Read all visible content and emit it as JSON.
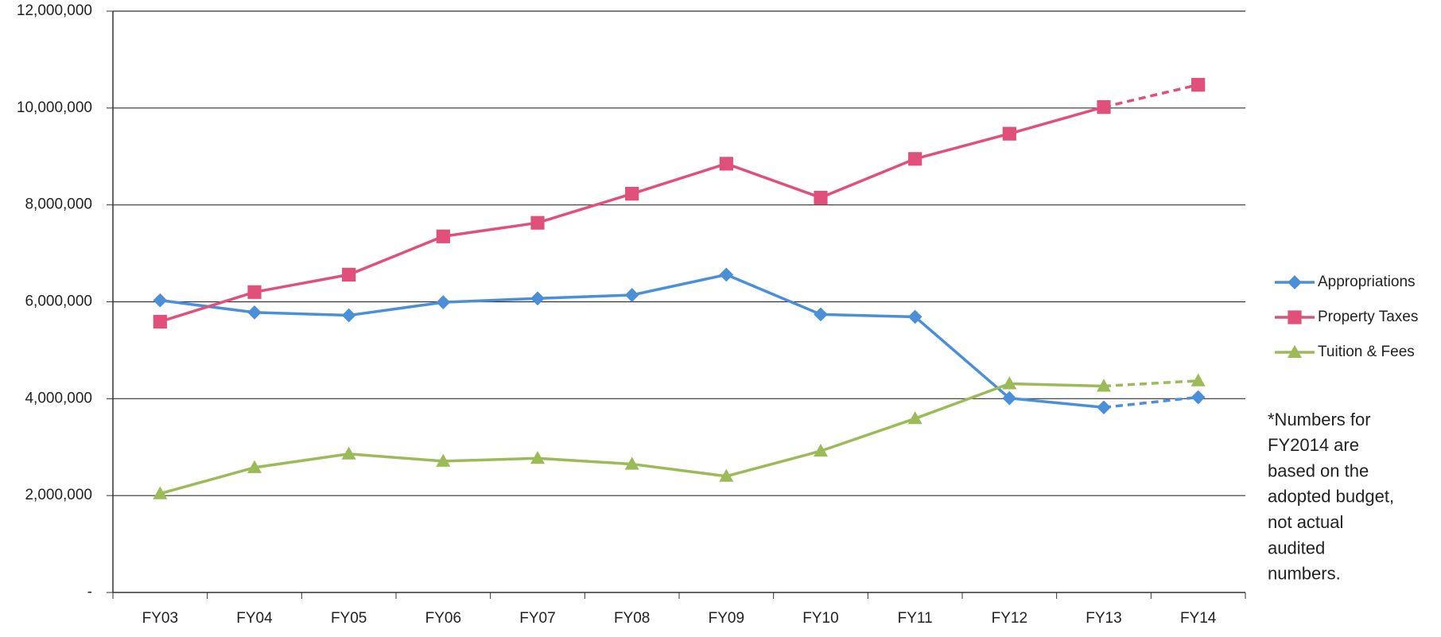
{
  "chart_data": {
    "type": "line",
    "categories": [
      "FY03",
      "FY04",
      "FY05",
      "FY06",
      "FY07",
      "FY08",
      "FY09",
      "FY10",
      "FY11",
      "FY12",
      "FY13",
      "FY14"
    ],
    "series": [
      {
        "name": "Appropriations",
        "color": "#4a8fd8",
        "marker": "diamond",
        "values": [
          6030000,
          5780000,
          5720000,
          5990000,
          6070000,
          6140000,
          6560000,
          5740000,
          5690000,
          4010000,
          3820000,
          4030000
        ]
      },
      {
        "name": "Property Taxes",
        "color": "#e0507a",
        "marker": "square",
        "values": [
          5590000,
          6200000,
          6560000,
          7350000,
          7630000,
          8230000,
          8850000,
          8150000,
          8950000,
          9470000,
          10020000,
          10480000
        ]
      },
      {
        "name": "Tuition & Fees",
        "color": "#9bbb59",
        "marker": "triangle",
        "values": [
          2040000,
          2580000,
          2860000,
          2710000,
          2770000,
          2650000,
          2400000,
          2920000,
          3590000,
          4310000,
          4260000,
          4370000
        ]
      }
    ],
    "ylim": [
      0,
      12000000
    ],
    "yticks": [
      {
        "value": 0,
        "label": "-"
      },
      {
        "value": 2000000,
        "label": "2,000,000"
      },
      {
        "value": 4000000,
        "label": "4,000,000"
      },
      {
        "value": 6000000,
        "label": "6,000,000"
      },
      {
        "value": 8000000,
        "label": "8,000,000"
      },
      {
        "value": 10000000,
        "label": "10,000,000"
      },
      {
        "value": 12000000,
        "label": "12,000,000"
      }
    ],
    "grid": true,
    "dashed_last_segment": true,
    "legend": "right",
    "note_lines": [
      "*Numbers for",
      "FY2014 are",
      "based on the",
      "adopted budget,",
      "not actual",
      "audited",
      "numbers."
    ]
  }
}
